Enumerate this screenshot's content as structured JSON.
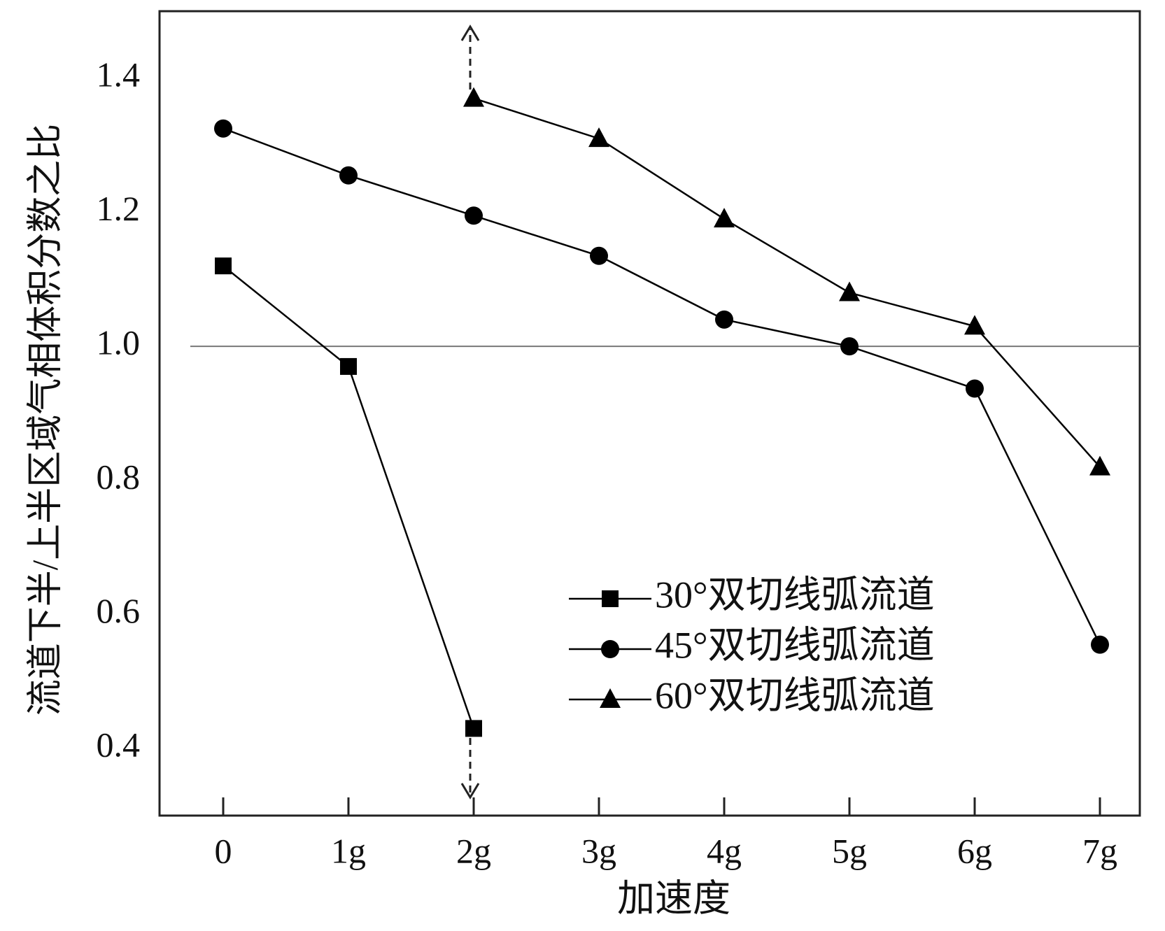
{
  "chart_data": {
    "type": "line",
    "x_label": "加速度",
    "y_label": "流道下半/上半区域气相体积分数之比",
    "categories": [
      "0",
      "1g",
      "2g",
      "3g",
      "4g",
      "5g",
      "6g",
      "7g"
    ],
    "series": [
      {
        "name": "30°双切线弧流道",
        "color": "#000000",
        "marker": "square",
        "values": [
          1.12,
          0.97,
          0.43,
          null,
          null,
          null,
          null,
          null
        ]
      },
      {
        "name": "45°双切线弧流道",
        "color": "#000000",
        "marker": "circle",
        "values": [
          1.325,
          1.255,
          1.195,
          1.135,
          1.04,
          1.0,
          0.937,
          0.555
        ]
      },
      {
        "name": "60°双切线弧流道",
        "color": "#000000",
        "marker": "triangle",
        "values": [
          null,
          null,
          1.37,
          1.31,
          1.19,
          1.08,
          1.03,
          0.82
        ]
      }
    ],
    "ylim": [
      0.3,
      1.5
    ],
    "yticks": [
      0.4,
      0.6,
      0.8,
      {
        "value": 1,
        "label": "1.0"
      },
      1.2,
      1.4
    ],
    "hline": 1,
    "legend": "lower-right"
  }
}
